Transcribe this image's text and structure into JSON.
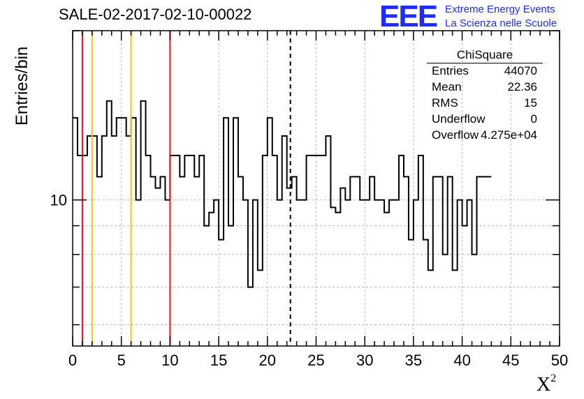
{
  "header": {
    "title": "SALE-02-2017-02-10-00022",
    "logo_mark": "EEE",
    "logo_line1": "Extreme Energy Events",
    "logo_line2": "La Scienza nelle Scuole"
  },
  "axes": {
    "ylabel": "Entries/bin",
    "xlabel_base": "X",
    "xlabel_sup": "2"
  },
  "stats": {
    "title": "ChiSquare",
    "rows": [
      {
        "k": "Entries",
        "v": "44070"
      },
      {
        "k": "Mean",
        "v": "22.36"
      },
      {
        "k": "RMS",
        "v": "15"
      },
      {
        "k": "Underflow",
        "v": "0"
      },
      {
        "k": "Overflow",
        "v": "4.275e+04"
      }
    ]
  },
  "colors": {
    "red_line": "#e8141b",
    "yellow_line": "#f5c518",
    "histogram": "#000000",
    "grid": "#b8b8b8"
  },
  "chart_data": {
    "type": "histogram",
    "title": "SALE-02-2017-02-10-00022",
    "xlabel": "X^2",
    "ylabel": "Entries/bin",
    "xlim": [
      0,
      50
    ],
    "ylim": [
      5.5,
      20
    ],
    "yscale": "log",
    "grid": true,
    "bin_width": 0.5,
    "x_ticks": [
      0,
      5,
      10,
      15,
      20,
      25,
      30,
      35,
      40,
      45,
      50
    ],
    "y_ticks": [
      10
    ],
    "bin_values": [
      14,
      12,
      12,
      13,
      13,
      11,
      13,
      15,
      13,
      14,
      14,
      13,
      14,
      10,
      15,
      12,
      11,
      10.5,
      11,
      10,
      12,
      12,
      11,
      12,
      12,
      11,
      12,
      9,
      9.5,
      10,
      8.5,
      14,
      9,
      14,
      11,
      10,
      7,
      10,
      7.5,
      12,
      14,
      12,
      10,
      13,
      10.5,
      11,
      10,
      10,
      12,
      12,
      12,
      12,
      13,
      9.7,
      9.5,
      10.5,
      10,
      11,
      11,
      10,
      10,
      11,
      10,
      10,
      9.5,
      10,
      10,
      12,
      11,
      8.5,
      10,
      12,
      8.5,
      7.5,
      11,
      11,
      8,
      11,
      7.5,
      10,
      9,
      10,
      8,
      11,
      11,
      11
    ],
    "vertical_lines": [
      {
        "x": 1,
        "color": "red",
        "style": "solid"
      },
      {
        "x": 2,
        "color": "yellow",
        "style": "solid"
      },
      {
        "x": 6,
        "color": "yellow",
        "style": "solid"
      },
      {
        "x": 10,
        "color": "red",
        "style": "solid"
      },
      {
        "x": 22.36,
        "color": "black",
        "style": "dashed"
      }
    ]
  }
}
